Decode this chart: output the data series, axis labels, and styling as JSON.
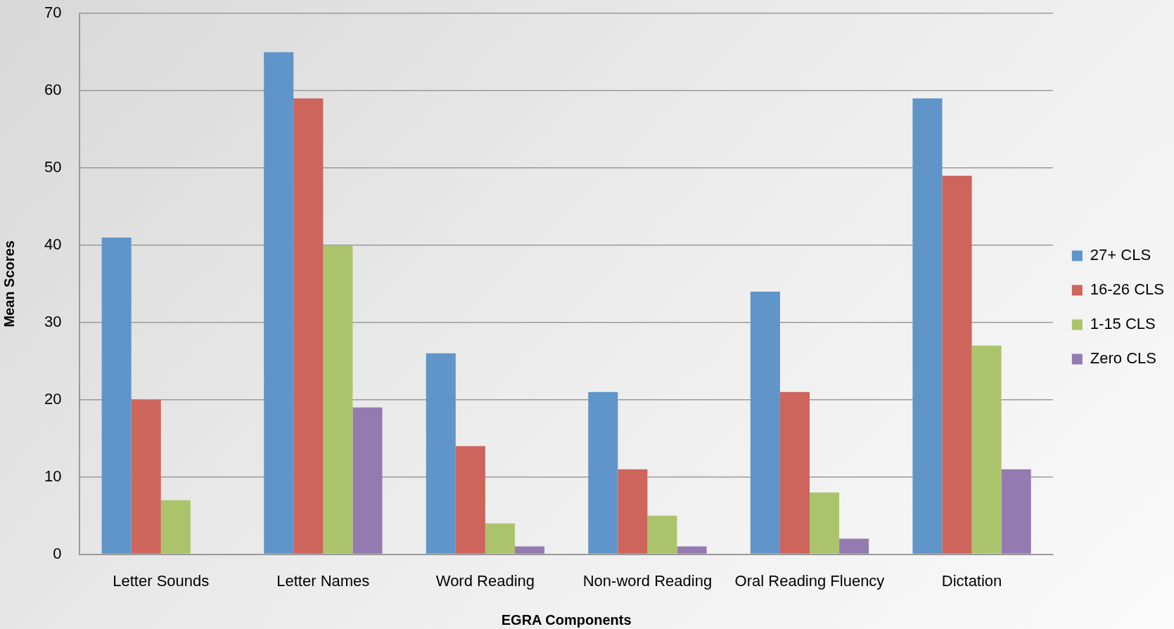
{
  "chart_data": {
    "type": "bar",
    "xlabel": "EGRA Components",
    "ylabel": "Mean Scores",
    "categories": [
      "Letter Sounds",
      "Letter Names",
      "Word Reading",
      "Non-word Reading",
      "Oral Reading Fluency",
      "Dictation"
    ],
    "series": [
      {
        "name": "27+ CLS",
        "color": "#5f95c9",
        "values": [
          41,
          65,
          26,
          21,
          34,
          59
        ]
      },
      {
        "name": "16-26 CLS",
        "color": "#cd655d",
        "values": [
          20,
          59,
          14,
          11,
          21,
          49
        ]
      },
      {
        "name": "1-15 CLS",
        "color": "#abc46c",
        "values": [
          7,
          40,
          4,
          5,
          8,
          27
        ]
      },
      {
        "name": "Zero CLS",
        "color": "#937bb1",
        "values": [
          null,
          19,
          1,
          1,
          2,
          11
        ]
      }
    ],
    "ylim": [
      0,
      70
    ],
    "yticks": [
      0,
      10,
      20,
      30,
      40,
      50,
      60,
      70
    ],
    "grid": "y",
    "legend": "right"
  }
}
